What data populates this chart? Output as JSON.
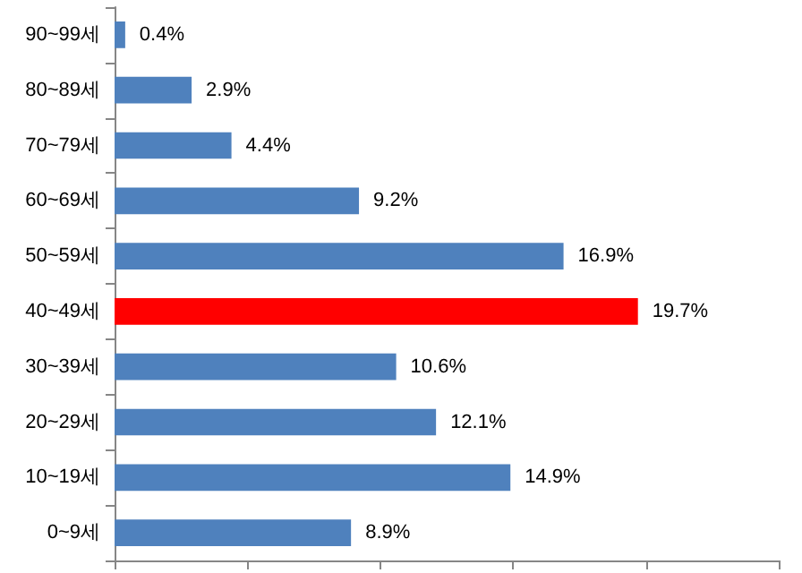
{
  "chart_data": {
    "type": "bar",
    "orientation": "horizontal",
    "categories": [
      "90~99세",
      "80~89세",
      "70~79세",
      "60~69세",
      "50~59세",
      "40~49세",
      "30~39세",
      "20~29세",
      "10~19세",
      "0~9세"
    ],
    "values": [
      0.4,
      2.9,
      4.4,
      9.2,
      16.9,
      19.7,
      10.6,
      12.1,
      14.9,
      8.9
    ],
    "colors": [
      "#4f81bd",
      "#4f81bd",
      "#4f81bd",
      "#4f81bd",
      "#4f81bd",
      "#ff0000",
      "#4f81bd",
      "#4f81bd",
      "#4f81bd",
      "#4f81bd"
    ],
    "value_labels": [
      "0.4%",
      "2.9%",
      "4.4%",
      "9.2%",
      "16.9%",
      "19.7%",
      "10.6%",
      "12.1%",
      "14.9%",
      "8.9%"
    ],
    "xlim": [
      0,
      25
    ],
    "xticks": [
      {
        "value": 0,
        "label": null
      },
      {
        "value": 5,
        "label": null
      },
      {
        "value": 10,
        "label": null
      },
      {
        "value": 15,
        "label": null
      },
      {
        "value": 20,
        "label": null
      },
      {
        "value": 25,
        "label": null
      }
    ],
    "tick_labels": "y"
  }
}
